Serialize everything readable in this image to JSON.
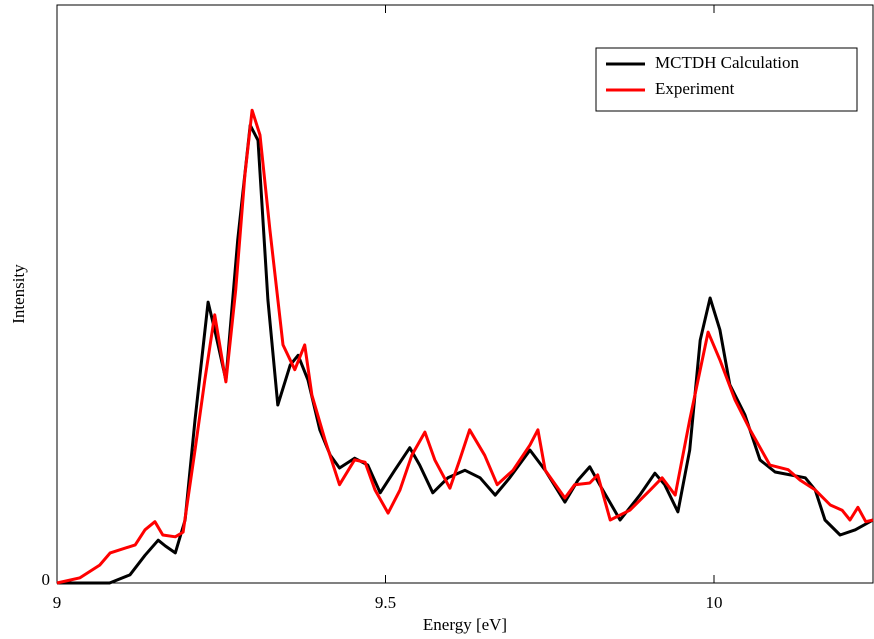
{
  "chart_data": {
    "type": "line",
    "x_label": "Energy [eV]",
    "y_label": "Intensity",
    "xlim": [
      9,
      10.242
    ],
    "ylim": [
      0,
      1
    ],
    "xticks": [
      9,
      9.5,
      10
    ],
    "yticks": [
      0
    ],
    "legend": "upper right",
    "series": [
      {
        "name": "MCTDH Calculation",
        "color": "#000000",
        "x": [
          9,
          9.08,
          9.111,
          9.134,
          9.154,
          9.165,
          9.18,
          9.195,
          9.21,
          9.23,
          9.24,
          9.257,
          9.275,
          9.294,
          9.306,
          9.321,
          9.336,
          9.355,
          9.367,
          9.382,
          9.4,
          9.416,
          9.43,
          9.453,
          9.473,
          9.492,
          9.514,
          9.537,
          9.552,
          9.572,
          9.595,
          9.621,
          9.644,
          9.667,
          9.689,
          9.72,
          9.743,
          9.773,
          9.793,
          9.811,
          9.826,
          9.857,
          9.887,
          9.91,
          9.925,
          9.945,
          9.963,
          9.979,
          9.994,
          10.009,
          10.024,
          10.047,
          10.07,
          10.093,
          10.116,
          10.139,
          10.154,
          10.169,
          10.192,
          10.215,
          10.242
        ],
        "values": [
          0,
          0,
          0.014,
          0.048,
          0.074,
          0.064,
          0.052,
          0.109,
          0.282,
          0.486,
          0.438,
          0.351,
          0.593,
          0.792,
          0.766,
          0.49,
          0.308,
          0.377,
          0.394,
          0.351,
          0.265,
          0.221,
          0.199,
          0.216,
          0.204,
          0.156,
          0.195,
          0.234,
          0.204,
          0.156,
          0.182,
          0.195,
          0.182,
          0.152,
          0.182,
          0.23,
          0.195,
          0.14,
          0.178,
          0.201,
          0.17,
          0.109,
          0.152,
          0.19,
          0.17,
          0.123,
          0.23,
          0.42,
          0.493,
          0.438,
          0.343,
          0.291,
          0.213,
          0.192,
          0.187,
          0.182,
          0.161,
          0.109,
          0.083,
          0.092,
          0.109
        ]
      },
      {
        "name": "Experiment",
        "color": "#ff0000",
        "x": [
          9,
          9.035,
          9.065,
          9.081,
          9.119,
          9.134,
          9.149,
          9.161,
          9.18,
          9.192,
          9.21,
          9.225,
          9.24,
          9.257,
          9.272,
          9.286,
          9.297,
          9.309,
          9.324,
          9.344,
          9.362,
          9.377,
          9.388,
          9.408,
          9.43,
          9.453,
          9.469,
          9.484,
          9.504,
          9.522,
          9.54,
          9.56,
          9.575,
          9.598,
          9.613,
          9.628,
          9.651,
          9.67,
          9.694,
          9.72,
          9.732,
          9.743,
          9.773,
          9.788,
          9.811,
          9.823,
          9.842,
          9.872,
          9.903,
          9.921,
          9.941,
          9.963,
          9.991,
          10.009,
          10.032,
          10.055,
          10.085,
          10.113,
          10.131,
          10.154,
          10.177,
          10.195,
          10.207,
          10.219,
          10.231,
          10.242
        ],
        "values": [
          0,
          0.009,
          0.031,
          0.052,
          0.066,
          0.092,
          0.106,
          0.083,
          0.08,
          0.088,
          0.23,
          0.351,
          0.464,
          0.348,
          0.507,
          0.706,
          0.818,
          0.775,
          0.611,
          0.412,
          0.369,
          0.412,
          0.325,
          0.247,
          0.17,
          0.213,
          0.209,
          0.161,
          0.121,
          0.161,
          0.221,
          0.261,
          0.213,
          0.164,
          0.213,
          0.265,
          0.221,
          0.17,
          0.195,
          0.239,
          0.265,
          0.195,
          0.147,
          0.17,
          0.173,
          0.187,
          0.109,
          0.126,
          0.161,
          0.182,
          0.152,
          0.282,
          0.434,
          0.386,
          0.317,
          0.265,
          0.204,
          0.196,
          0.178,
          0.161,
          0.135,
          0.126,
          0.109,
          0.131,
          0.106,
          0.109
        ]
      }
    ]
  }
}
